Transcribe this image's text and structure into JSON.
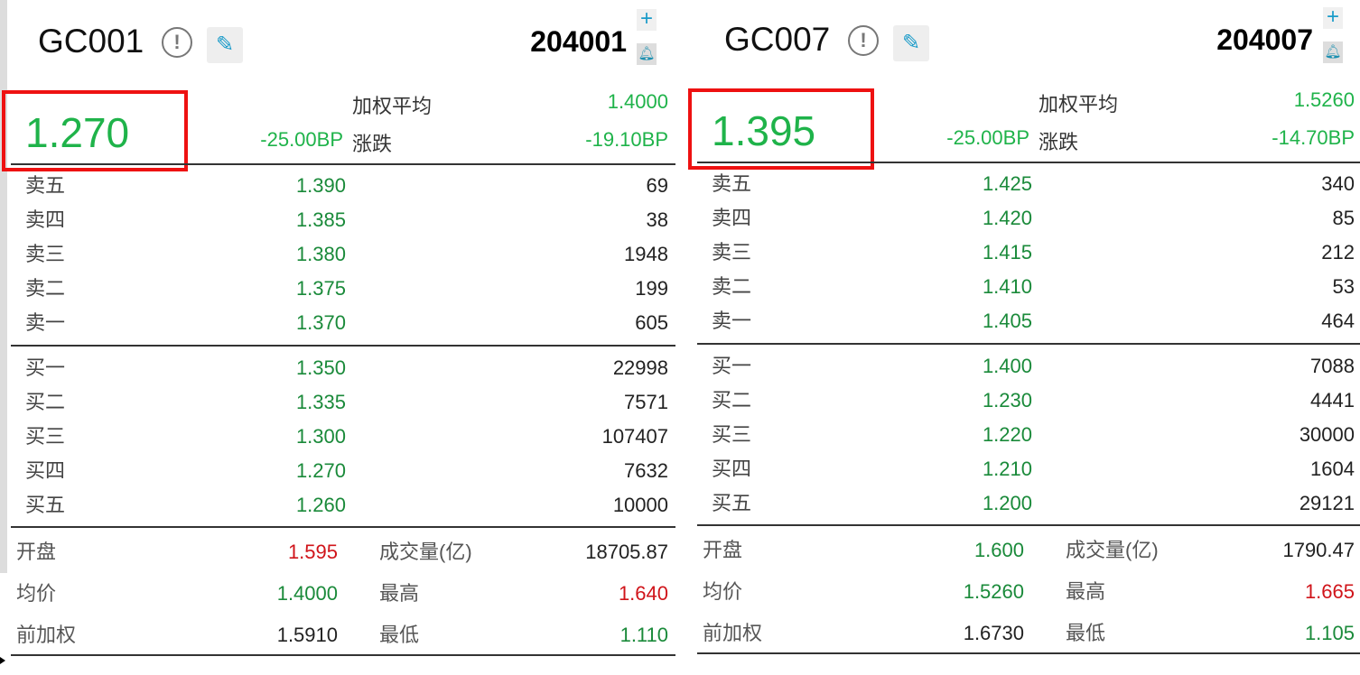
{
  "panels": [
    {
      "name": "GC001",
      "code": "204001",
      "price": "1.270",
      "change": "-25.00BP",
      "wavg_label": "加权平均",
      "wavg": "1.4000",
      "chg_label": "涨跌",
      "chg": "-19.10BP",
      "asks": [
        {
          "label": "卖五",
          "price": "1.390",
          "vol": "69"
        },
        {
          "label": "卖四",
          "price": "1.385",
          "vol": "38"
        },
        {
          "label": "卖三",
          "price": "1.380",
          "vol": "1948"
        },
        {
          "label": "卖二",
          "price": "1.375",
          "vol": "199"
        },
        {
          "label": "卖一",
          "price": "1.370",
          "vol": "605"
        }
      ],
      "bids": [
        {
          "label": "买一",
          "price": "1.350",
          "vol": "22998"
        },
        {
          "label": "买二",
          "price": "1.335",
          "vol": "7571"
        },
        {
          "label": "买三",
          "price": "1.300",
          "vol": "107407"
        },
        {
          "label": "买四",
          "price": "1.270",
          "vol": "7632"
        },
        {
          "label": "买五",
          "price": "1.260",
          "vol": "10000"
        }
      ],
      "stats": {
        "open_label": "开盘",
        "open": "1.595",
        "volume_label": "成交量(亿)",
        "volume": "18705.87",
        "avg_label": "均价",
        "avg": "1.4000",
        "high_label": "最高",
        "high": "1.640",
        "prev_label": "前加权",
        "prev": "1.5910",
        "low_label": "最低",
        "low": "1.110"
      }
    },
    {
      "name": "GC007",
      "code": "204007",
      "price": "1.395",
      "change": "-25.00BP",
      "wavg_label": "加权平均",
      "wavg": "1.5260",
      "chg_label": "涨跌",
      "chg": "-14.70BP",
      "asks": [
        {
          "label": "卖五",
          "price": "1.425",
          "vol": "340"
        },
        {
          "label": "卖四",
          "price": "1.420",
          "vol": "85"
        },
        {
          "label": "卖三",
          "price": "1.415",
          "vol": "212"
        },
        {
          "label": "卖二",
          "price": "1.410",
          "vol": "53"
        },
        {
          "label": "卖一",
          "price": "1.405",
          "vol": "464"
        }
      ],
      "bids": [
        {
          "label": "买一",
          "price": "1.400",
          "vol": "7088"
        },
        {
          "label": "买二",
          "price": "1.230",
          "vol": "4441"
        },
        {
          "label": "买三",
          "price": "1.220",
          "vol": "30000"
        },
        {
          "label": "买四",
          "price": "1.210",
          "vol": "1604"
        },
        {
          "label": "买五",
          "price": "1.200",
          "vol": "29121"
        }
      ],
      "stats": {
        "open_label": "开盘",
        "open": "1.600",
        "volume_label": "成交量(亿)",
        "volume": "1790.47",
        "avg_label": "均价",
        "avg": "1.5260",
        "high_label": "最高",
        "high": "1.665",
        "prev_label": "前加权",
        "prev": "1.6730",
        "low_label": "最低",
        "low": "1.105"
      }
    }
  ],
  "icons": {
    "info": "info-icon",
    "edit": "pencil-icon",
    "add": "plus-icon",
    "alert": "bell-icon"
  },
  "colors": {
    "down": "#1fb34a",
    "up": "#d0141a",
    "highlight": "#ee1111",
    "accent": "#1a9bc9"
  }
}
